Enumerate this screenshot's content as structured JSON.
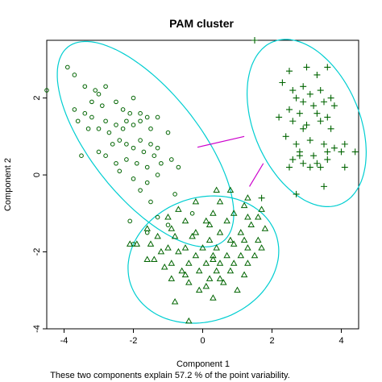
{
  "chart_data": {
    "type": "scatter",
    "title": "PAM cluster",
    "xlabel": "Component 1",
    "ylabel": "Component 2",
    "subtitle": "These two components explain 57.2 % of the point variability.",
    "xlim": [
      -4.5,
      4.5
    ],
    "ylim": [
      -4,
      3.5
    ],
    "xticks": [
      -4,
      -2,
      0,
      2,
      4
    ],
    "yticks": [
      -4,
      -2,
      0,
      2
    ],
    "colors": {
      "points": "#006400",
      "ellipse": "#00CED1",
      "link": "#CC00CC",
      "axis": "#000000"
    },
    "series": [
      {
        "marker": "circle",
        "points": [
          [
            -3.9,
            2.8
          ],
          [
            -3.7,
            2.6
          ],
          [
            -4.5,
            2.2
          ],
          [
            -3.4,
            2.3
          ],
          [
            -3.1,
            2.2
          ],
          [
            -3.0,
            2.1
          ],
          [
            -2.8,
            2.3
          ],
          [
            -3.2,
            1.9
          ],
          [
            -2.9,
            1.8
          ],
          [
            -2.5,
            1.9
          ],
          [
            -2.3,
            1.7
          ],
          [
            -2.0,
            2.0
          ],
          [
            -1.8,
            1.6
          ],
          [
            -2.1,
            1.6
          ],
          [
            -3.7,
            1.7
          ],
          [
            -3.6,
            1.4
          ],
          [
            -3.4,
            1.6
          ],
          [
            -3.2,
            1.5
          ],
          [
            -3.3,
            1.2
          ],
          [
            -3.0,
            1.2
          ],
          [
            -2.8,
            1.4
          ],
          [
            -2.7,
            1.1
          ],
          [
            -2.5,
            1.3
          ],
          [
            -2.3,
            1.2
          ],
          [
            -2.2,
            1.4
          ],
          [
            -2.0,
            1.3
          ],
          [
            -1.8,
            1.4
          ],
          [
            -1.6,
            1.5
          ],
          [
            -1.5,
            1.2
          ],
          [
            -1.3,
            1.5
          ],
          [
            -1.0,
            1.1
          ],
          [
            -2.6,
            0.8
          ],
          [
            -2.4,
            0.9
          ],
          [
            -2.2,
            0.8
          ],
          [
            -2.0,
            0.7
          ],
          [
            -1.8,
            0.9
          ],
          [
            -1.7,
            0.6
          ],
          [
            -1.5,
            0.8
          ],
          [
            -1.3,
            0.7
          ],
          [
            -3.5,
            0.5
          ],
          [
            -3.0,
            0.6
          ],
          [
            -2.8,
            0.5
          ],
          [
            -2.5,
            0.3
          ],
          [
            -2.2,
            0.4
          ],
          [
            -1.9,
            0.3
          ],
          [
            -1.6,
            0.2
          ],
          [
            -1.4,
            0.5
          ],
          [
            -1.2,
            0.3
          ],
          [
            -0.9,
            0.4
          ],
          [
            -0.7,
            0.2
          ],
          [
            -2.4,
            0.1
          ],
          [
            -2.0,
            -0.1
          ],
          [
            -1.6,
            -0.2
          ],
          [
            -1.3,
            0.0
          ],
          [
            -1.8,
            -0.4
          ],
          [
            -1.5,
            -0.7
          ],
          [
            -2.1,
            -1.2
          ],
          [
            -1.3,
            -1.1
          ],
          [
            -1.0,
            -1.3
          ],
          [
            -1.6,
            -1.5
          ],
          [
            -2.0,
            -1.8
          ],
          [
            -0.3,
            -1.0
          ],
          [
            -0.8,
            -0.5
          ]
        ]
      },
      {
        "marker": "plus",
        "points": [
          [
            1.5,
            3.5
          ],
          [
            2.5,
            2.7
          ],
          [
            2.3,
            2.4
          ],
          [
            3.0,
            2.8
          ],
          [
            3.3,
            2.6
          ],
          [
            3.6,
            2.8
          ],
          [
            2.6,
            2.2
          ],
          [
            2.9,
            2.3
          ],
          [
            3.1,
            2.1
          ],
          [
            3.4,
            2.2
          ],
          [
            3.7,
            2.0
          ],
          [
            2.7,
            2.0
          ],
          [
            2.9,
            1.9
          ],
          [
            3.2,
            1.8
          ],
          [
            3.5,
            1.9
          ],
          [
            3.8,
            1.8
          ],
          [
            2.5,
            1.7
          ],
          [
            2.8,
            1.6
          ],
          [
            3.3,
            1.6
          ],
          [
            3.6,
            1.5
          ],
          [
            2.2,
            1.5
          ],
          [
            2.6,
            1.4
          ],
          [
            3.0,
            1.3
          ],
          [
            3.4,
            1.4
          ],
          [
            3.7,
            1.2
          ],
          [
            2.9,
            1.2
          ],
          [
            2.4,
            1.0
          ],
          [
            2.7,
            0.8
          ],
          [
            3.1,
            0.9
          ],
          [
            3.5,
            0.8
          ],
          [
            3.8,
            0.7
          ],
          [
            4.1,
            0.8
          ],
          [
            2.8,
            0.6
          ],
          [
            3.2,
            0.5
          ],
          [
            3.6,
            0.6
          ],
          [
            4.0,
            0.6
          ],
          [
            4.4,
            0.6
          ],
          [
            2.6,
            0.4
          ],
          [
            2.9,
            0.3
          ],
          [
            3.3,
            0.3
          ],
          [
            3.6,
            0.4
          ],
          [
            2.5,
            0.2
          ],
          [
            3.1,
            0.2
          ],
          [
            3.4,
            0.2
          ],
          [
            4.1,
            0.2
          ],
          [
            2.8,
            0.5
          ],
          [
            3.5,
            -0.3
          ],
          [
            2.7,
            -0.5
          ],
          [
            1.7,
            -0.6
          ]
        ]
      },
      {
        "marker": "triangle",
        "points": [
          [
            0.8,
            -0.4
          ],
          [
            0.5,
            -0.7
          ],
          [
            -0.2,
            -0.7
          ],
          [
            1.2,
            -0.8
          ],
          [
            -0.7,
            -0.9
          ],
          [
            0.3,
            -1.0
          ],
          [
            1.3,
            -1.1
          ],
          [
            1.7,
            -0.9
          ],
          [
            -1.0,
            -1.1
          ],
          [
            -0.5,
            -1.2
          ],
          [
            0.1,
            -1.2
          ],
          [
            0.7,
            -1.2
          ],
          [
            1.4,
            -1.3
          ],
          [
            1.8,
            -1.4
          ],
          [
            -1.6,
            -1.4
          ],
          [
            -0.9,
            -1.4
          ],
          [
            -0.2,
            -1.5
          ],
          [
            0.5,
            -1.5
          ],
          [
            1.1,
            -1.5
          ],
          [
            -1.3,
            -1.6
          ],
          [
            -0.8,
            -1.6
          ],
          [
            -0.3,
            -1.6
          ],
          [
            0.2,
            -1.7
          ],
          [
            0.8,
            -1.7
          ],
          [
            1.2,
            -1.7
          ],
          [
            1.6,
            -1.7
          ],
          [
            -1.5,
            -1.8
          ],
          [
            -1.0,
            -1.9
          ],
          [
            -0.5,
            -1.9
          ],
          [
            0.0,
            -1.9
          ],
          [
            0.4,
            -1.9
          ],
          [
            0.9,
            -1.8
          ],
          [
            1.3,
            -1.9
          ],
          [
            1.7,
            -1.9
          ],
          [
            -1.9,
            -1.8
          ],
          [
            -1.2,
            -2.0
          ],
          [
            -0.7,
            -2.0
          ],
          [
            -0.2,
            -2.1
          ],
          [
            0.3,
            -2.1
          ],
          [
            0.7,
            -2.1
          ],
          [
            1.1,
            -2.1
          ],
          [
            1.5,
            -2.1
          ],
          [
            -1.4,
            -2.2
          ],
          [
            -0.9,
            -2.3
          ],
          [
            -0.4,
            -2.3
          ],
          [
            0.1,
            -2.3
          ],
          [
            0.5,
            -2.3
          ],
          [
            0.9,
            -2.3
          ],
          [
            1.3,
            -2.3
          ],
          [
            -2.1,
            -1.8
          ],
          [
            -1.6,
            -2.2
          ],
          [
            -1.1,
            -2.4
          ],
          [
            -0.6,
            -2.5
          ],
          [
            -0.1,
            -2.5
          ],
          [
            0.4,
            -2.5
          ],
          [
            0.8,
            -2.5
          ],
          [
            -0.9,
            -2.7
          ],
          [
            -0.4,
            -2.8
          ],
          [
            0.2,
            -2.7
          ],
          [
            0.6,
            -2.8
          ],
          [
            -0.1,
            -3.0
          ],
          [
            0.3,
            -3.2
          ],
          [
            1.0,
            -3.0
          ],
          [
            0.1,
            -2.9
          ],
          [
            -0.5,
            -2.6
          ],
          [
            1.2,
            -2.6
          ],
          [
            0.5,
            -2.7
          ],
          [
            -0.8,
            -3.3
          ],
          [
            -0.4,
            -3.8
          ],
          [
            0.3,
            -2.2
          ],
          [
            0.2,
            -1.3
          ],
          [
            0.9,
            -1.0
          ],
          [
            0.4,
            -0.4
          ],
          [
            1.3,
            -0.6
          ],
          [
            1.6,
            -1.1
          ]
        ]
      }
    ],
    "ellipses": [
      {
        "cx": -1.65,
        "cy": 0.8,
        "rx": 3.38,
        "ry": 1.48,
        "rotation_deg": -47
      },
      {
        "cx": 3.0,
        "cy": 1.35,
        "rx": 2.33,
        "ry": 1.5,
        "rotation_deg": -62
      },
      {
        "cx": 0.02,
        "cy": -2.2,
        "rx": 2.2,
        "ry": 1.62,
        "rotation_deg": 13
      }
    ],
    "links": [
      [
        [
          -0.15,
          0.72
        ],
        [
          1.2,
          1.0
        ]
      ],
      [
        [
          1.35,
          -0.3
        ],
        [
          1.75,
          0.3
        ]
      ]
    ]
  }
}
